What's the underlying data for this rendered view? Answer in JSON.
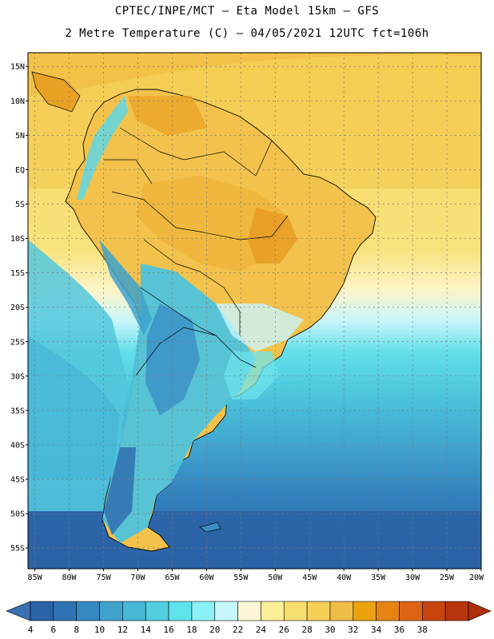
{
  "header": {
    "line1": "CPTEC/INPE/MCT –  Eta Model 15km – GFS",
    "line2": "2 Metre Temperature (C) – 04/05/2021 12UTC fct=106h"
  },
  "map": {
    "lat_range": [
      -58,
      17
    ],
    "lon_range": [
      -86,
      -20
    ],
    "lat_ticks": [
      "15N",
      "10N",
      "5N",
      "EQ",
      "5S",
      "10S",
      "15S",
      "20S",
      "25S",
      "30S",
      "35S",
      "40S",
      "45S",
      "50S",
      "55S"
    ],
    "lon_ticks": [
      "85W",
      "80W",
      "75W",
      "70W",
      "65W",
      "60W",
      "55W",
      "50W",
      "45W",
      "40W",
      "35W",
      "30W",
      "25W",
      "20W"
    ],
    "gridlines": true
  },
  "colorbar": {
    "labels": [
      "4",
      "6",
      "8",
      "10",
      "12",
      "14",
      "16",
      "18",
      "20",
      "22",
      "24",
      "26",
      "28",
      "30",
      "32",
      "34",
      "36",
      "38"
    ],
    "colors": [
      "#2a62a6",
      "#2e74b5",
      "#3589c3",
      "#3fa2cd",
      "#47b8d7",
      "#51cedf",
      "#5fe3ea",
      "#8cf1f5",
      "#c8f7fb",
      "#fdf7d8",
      "#fbef9a",
      "#f8df6d",
      "#f5cf57",
      "#efbd45",
      "#eaa20e",
      "#e58414",
      "#dd6414",
      "#c9440c",
      "#b8340c"
    ]
  }
}
